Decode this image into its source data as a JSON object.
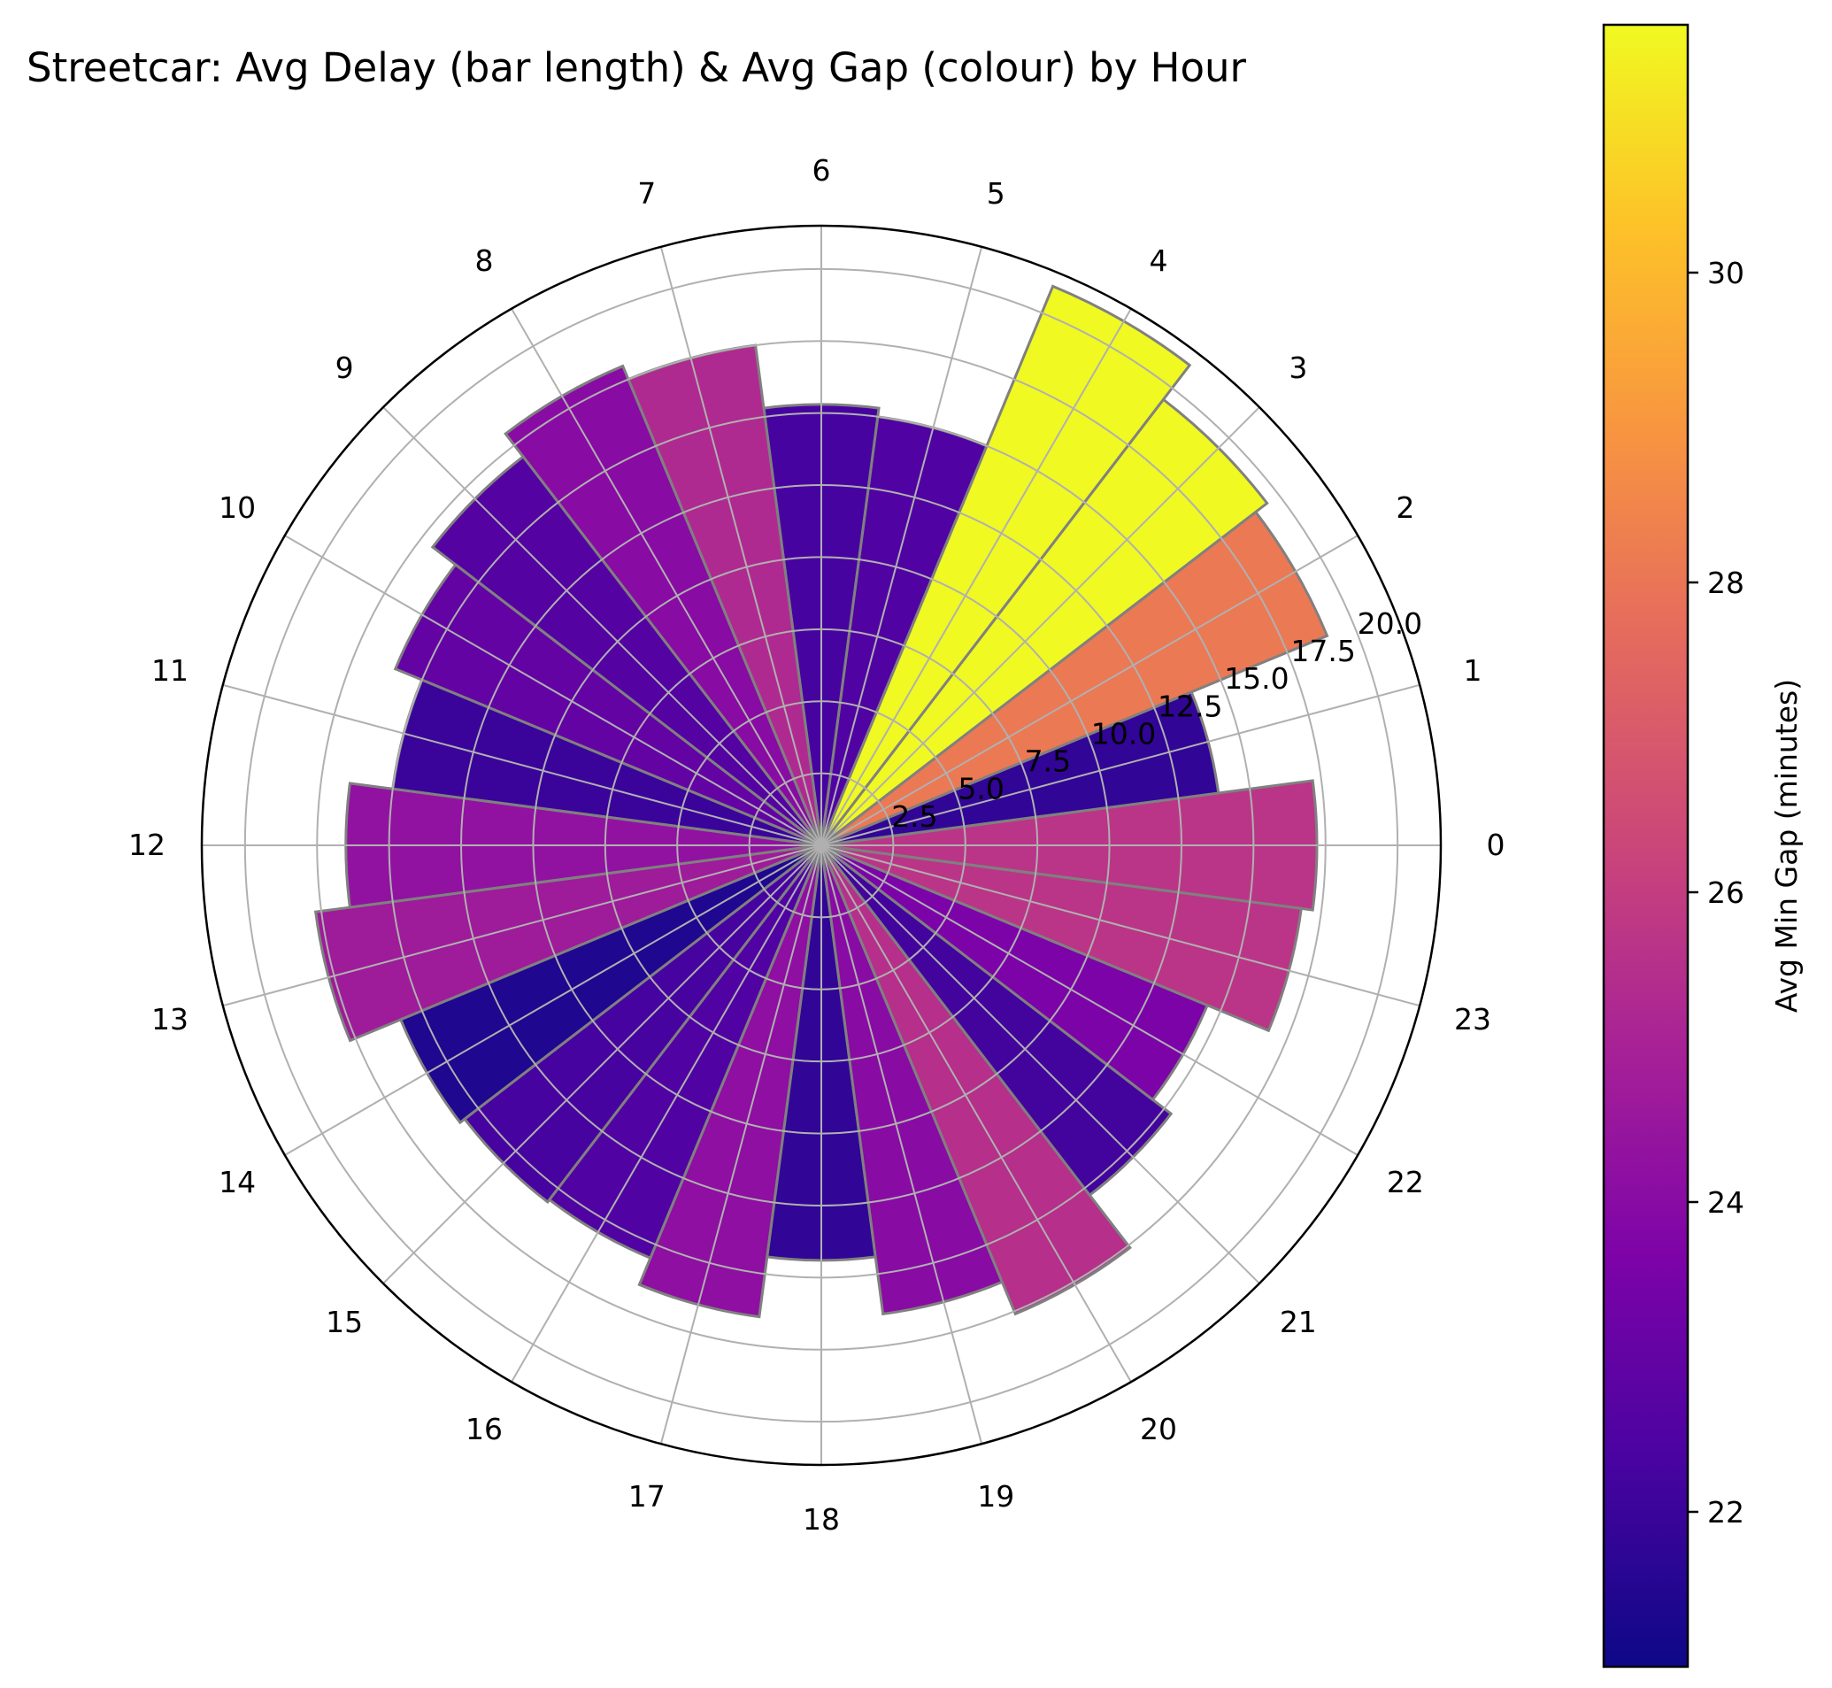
{
  "chart_data": {
    "type": "polar-bar",
    "title": "Streetcar: Avg Delay (bar length) & Avg Gap (colour) by Hour",
    "hours": [
      0,
      1,
      2,
      3,
      4,
      5,
      6,
      7,
      8,
      9,
      10,
      11,
      12,
      13,
      14,
      15,
      16,
      17,
      18,
      19,
      20,
      21,
      22,
      23
    ],
    "hour_labels": [
      "0",
      "1",
      "2",
      "3",
      "4",
      "5",
      "6",
      "7",
      "8",
      "9",
      "10",
      "11",
      "12",
      "13",
      "14",
      "15",
      "16",
      "17",
      "18",
      "19",
      "20",
      "21",
      "22",
      "23"
    ],
    "avg_delay_minutes": [
      17.2,
      13.9,
      19.0,
      19.5,
      21.0,
      15.0,
      15.3,
      17.5,
      18.0,
      17.0,
      16.0,
      15.0,
      16.5,
      17.7,
      15.8,
      15.6,
      15.5,
      16.5,
      14.4,
      16.4,
      17.6,
      15.3,
      14.5,
      16.8
    ],
    "avg_min_gap_minutes": [
      25.7,
      21.8,
      28.1,
      31.6,
      31.6,
      22.5,
      22.3,
      25.3,
      24.0,
      22.6,
      23.0,
      22.0,
      24.3,
      24.7,
      21.4,
      22.3,
      22.5,
      24.2,
      21.8,
      24.0,
      25.5,
      22.2,
      23.6,
      25.7
    ],
    "radial_ticks": [
      "2.5",
      "5.0",
      "7.5",
      "10.0",
      "12.5",
      "15.0",
      "17.5",
      "20.0"
    ],
    "radial_tick_values": [
      2.5,
      5.0,
      7.5,
      10.0,
      12.5,
      15.0,
      17.5,
      20.0
    ],
    "radial_max": 21.5,
    "direction": "counterclockwise",
    "zero_location": "east",
    "grid": true,
    "colormap": "plasma",
    "color_range": [
      21.0,
      31.6
    ],
    "colorbar": {
      "label": "Avg Min Gap (minutes)",
      "ticks": [
        "22",
        "24",
        "26",
        "28",
        "30"
      ],
      "tick_values": [
        22,
        24,
        26,
        28,
        30
      ],
      "position": "right"
    },
    "bar_edge_color": "#808080"
  }
}
